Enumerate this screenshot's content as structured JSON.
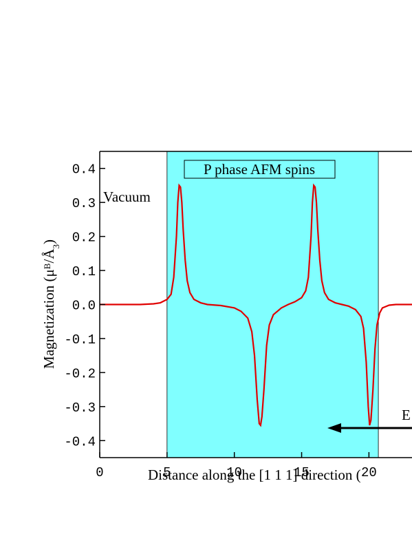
{
  "chart_data": {
    "type": "line",
    "xlabel": "Distance along the [1 1 1] direction  (",
    "ylabel": [
      "Magnetization  (μ",
      "B",
      "/Å",
      "3",
      ")"
    ],
    "annotations": [
      "Vacuum",
      "P phase  AFM spins",
      "E"
    ],
    "shade": {
      "range": [
        5,
        20.7
      ],
      "color": "#80ffff"
    },
    "color": "#e00000",
    "x": [
      0,
      2,
      3,
      4,
      4.5,
      5,
      5.3,
      5.5,
      5.7,
      5.8,
      5.9,
      6.0,
      6.1,
      6.2,
      6.35,
      6.5,
      6.7,
      7,
      7.5,
      8,
      9,
      10,
      10.5,
      11,
      11.3,
      11.5,
      11.7,
      11.85,
      11.95,
      12.05,
      12.2,
      12.4,
      12.6,
      12.9,
      13.5,
      14,
      14.5,
      15,
      15.3,
      15.5,
      15.7,
      15.8,
      15.9,
      16.0,
      16.1,
      16.2,
      16.35,
      16.5,
      16.7,
      17,
      17.5,
      18,
      18.5,
      19,
      19.4,
      19.6,
      19.8,
      19.95,
      20.05,
      20.15,
      20.3,
      20.45,
      20.6,
      20.8,
      21,
      21.5,
      22,
      23.2
    ],
    "values": [
      0,
      0,
      0,
      0.002,
      0.005,
      0.015,
      0.03,
      0.08,
      0.2,
      0.3,
      0.35,
      0.345,
      0.3,
      0.22,
      0.13,
      0.07,
      0.035,
      0.015,
      0.005,
      0,
      -0.003,
      -0.01,
      -0.02,
      -0.04,
      -0.08,
      -0.15,
      -0.28,
      -0.35,
      -0.355,
      -0.33,
      -0.25,
      -0.12,
      -0.06,
      -0.03,
      -0.01,
      0,
      0.008,
      0.02,
      0.04,
      0.08,
      0.2,
      0.3,
      0.35,
      0.345,
      0.3,
      0.22,
      0.13,
      0.07,
      0.035,
      0.015,
      0.005,
      0,
      -0.005,
      -0.015,
      -0.035,
      -0.07,
      -0.17,
      -0.3,
      -0.355,
      -0.34,
      -0.25,
      -0.13,
      -0.06,
      -0.025,
      -0.01,
      -0.002,
      0,
      0
    ],
    "xlim": [
      0,
      23.2
    ],
    "xticks": [
      0,
      5,
      10,
      15,
      20
    ],
    "ylim": [
      -0.45,
      0.45
    ],
    "yticks": [
      -0.4,
      -0.3,
      -0.2,
      -0.1,
      {
        "value": 0,
        "label": "0.0"
      },
      0.1,
      0.2,
      0.3,
      0.4
    ]
  }
}
